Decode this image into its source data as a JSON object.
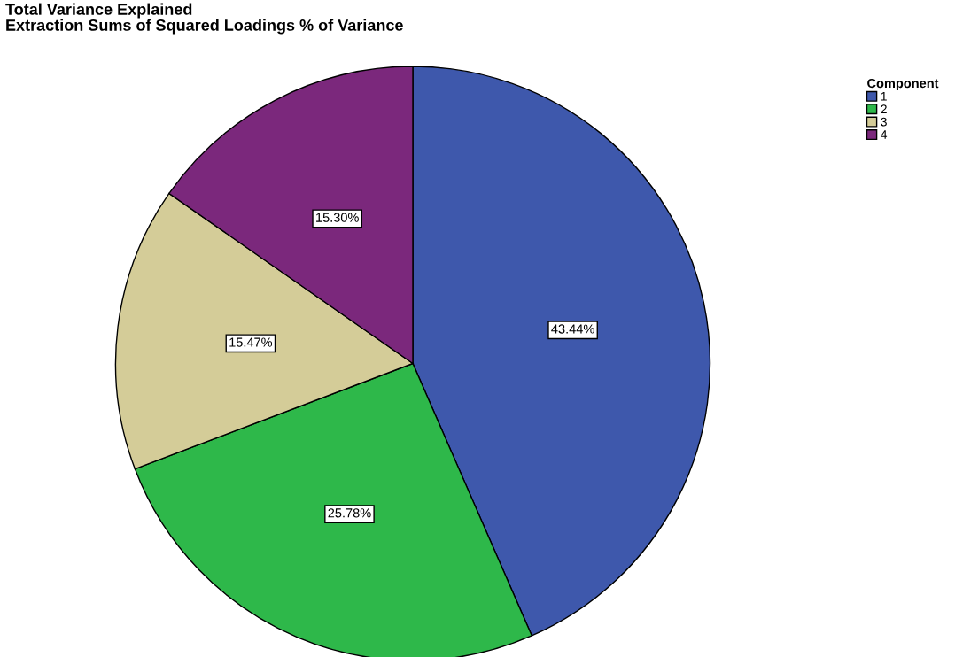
{
  "chart_data": {
    "type": "pie",
    "title": "Total Variance Explained",
    "subtitle": "Extraction Sums of Squared Loadings % of Variance",
    "legend_title": "Component",
    "legend": "top right",
    "categories": [
      "1",
      "2",
      "3",
      "4"
    ],
    "values": [
      43.44,
      25.78,
      15.47,
      15.3
    ],
    "colors": [
      "#3e58ac",
      "#2eb84a",
      "#d4cc98",
      "#7b287c"
    ],
    "value_labels": [
      "43.44%",
      "25.78%",
      "15.47%",
      "15.30%"
    ]
  }
}
